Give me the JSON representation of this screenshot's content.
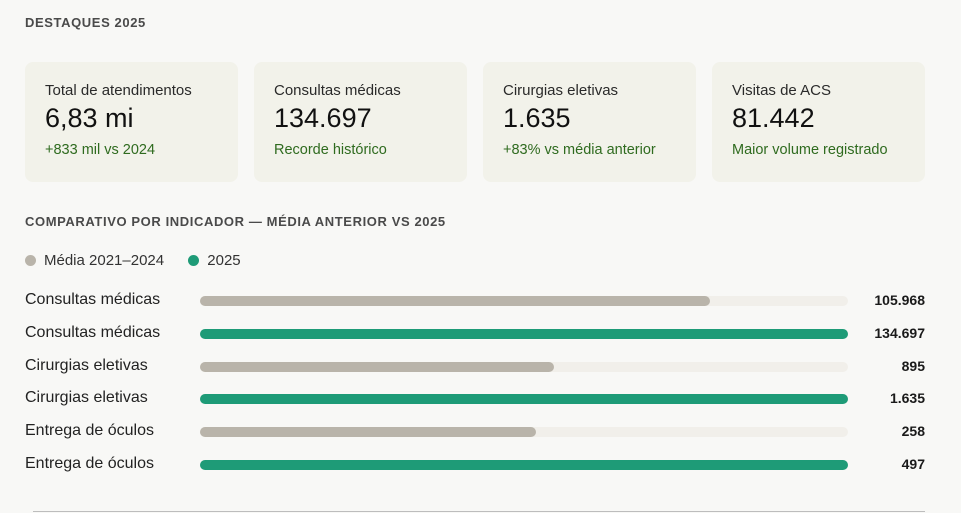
{
  "highlights": {
    "title": "DESTAQUES 2025",
    "cards": [
      {
        "label": "Total de atendimentos",
        "value": "6,83 mi",
        "note": "+833 mil vs 2024"
      },
      {
        "label": "Consultas médicas",
        "value": "134.697",
        "note": "Recorde histórico"
      },
      {
        "label": "Cirurgias eletivas",
        "value": "1.635",
        "note": "+83% vs média anterior"
      },
      {
        "label": "Visitas de ACS",
        "value": "81.442",
        "note": "Maior volume registrado"
      }
    ]
  },
  "comparison": {
    "title": "COMPARATIVO POR INDICADOR — MÉDIA ANTERIOR VS 2025"
  },
  "colors": {
    "previous": "#b9b4aa",
    "current": "#1e9b77",
    "track": "#f1efea",
    "positive_note": "#2f6b1f"
  },
  "chart_data": {
    "type": "bar",
    "orientation": "horizontal",
    "legend": [
      "Média 2021–2024",
      "2025"
    ],
    "legend_position": "top-left",
    "rows": [
      {
        "label": "Consultas médicas",
        "series": "Média 2021–2024",
        "value": 105968,
        "display": "105.968",
        "fraction": 0.787
      },
      {
        "label": "Consultas médicas",
        "series": "2025",
        "value": 134697,
        "display": "134.697",
        "fraction": 1.0
      },
      {
        "label": "Cirurgias eletivas",
        "series": "Média 2021–2024",
        "value": 895,
        "display": "895",
        "fraction": 0.547
      },
      {
        "label": "Cirurgias eletivas",
        "series": "2025",
        "value": 1635,
        "display": "1.635",
        "fraction": 1.0
      },
      {
        "label": "Entrega de óculos",
        "series": "Média 2021–2024",
        "value": 258,
        "display": "258",
        "fraction": 0.519
      },
      {
        "label": "Entrega de óculos",
        "series": "2025",
        "value": 497,
        "display": "497",
        "fraction": 1.0
      }
    ]
  }
}
